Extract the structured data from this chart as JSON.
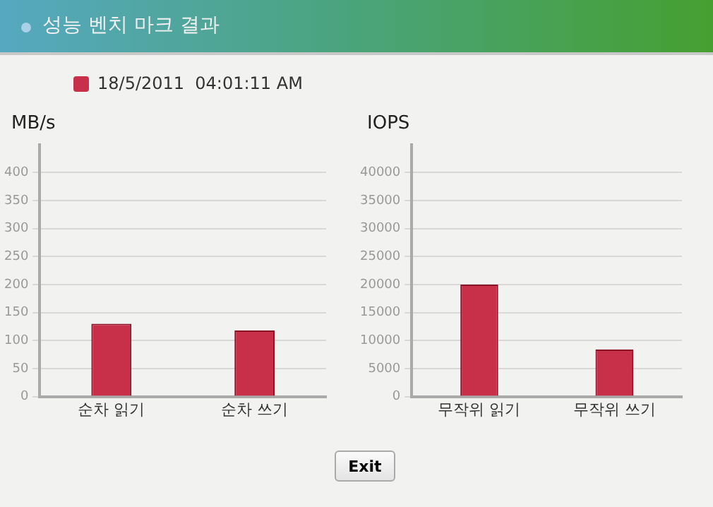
{
  "chart_data": [
    {
      "type": "bar",
      "title": "성능 벤치 마크 결과",
      "ylabel": "MB/s",
      "categories": [
        "순차 읽기",
        "순차 쓰기"
      ],
      "series": [
        {
          "name": "18/5/2011  04:01:11 AM",
          "color": "#c8304a",
          "values": [
            130,
            118
          ]
        }
      ],
      "ylim": [
        0,
        450
      ],
      "yticks": [
        0,
        50,
        100,
        150,
        200,
        250,
        300,
        350,
        400
      ],
      "grid": "y",
      "legend": "top left"
    },
    {
      "type": "bar",
      "ylabel": "IOPS",
      "categories": [
        "무작위 읽기",
        "무작위 쓰기"
      ],
      "series": [
        {
          "color": "#c8304a",
          "values": [
            20000,
            8400
          ]
        }
      ],
      "ylim": [
        0,
        45000
      ],
      "yticks": [
        0,
        5000,
        10000,
        15000,
        20000,
        25000,
        30000,
        35000,
        40000
      ],
      "grid": "y",
      "annotations": [
        "Exit"
      ]
    }
  ]
}
